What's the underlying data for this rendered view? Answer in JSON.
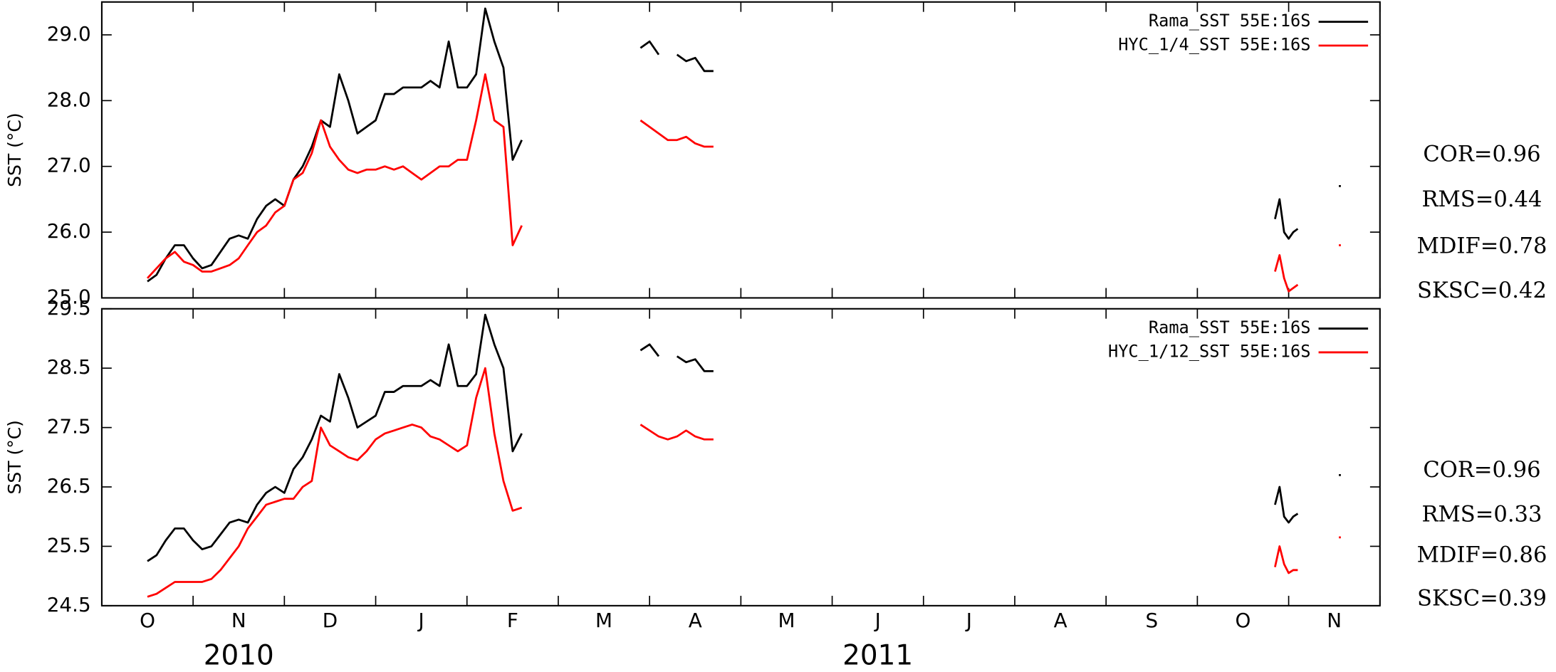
{
  "chart_data": [
    {
      "type": "line",
      "ylabel": "SST (°C)",
      "legend": "upper right",
      "xlim": [
        0,
        14
      ],
      "xticks": [
        0,
        1,
        2,
        3,
        4,
        5,
        6,
        7,
        8,
        9,
        10,
        11,
        12,
        13,
        14
      ],
      "ylim": [
        25,
        29.5
      ],
      "yticks": [
        {
          "value": 25,
          "label": "25.0"
        },
        {
          "value": 26,
          "label": "26.0"
        },
        {
          "value": 27,
          "label": "27.0"
        },
        {
          "value": 28,
          "label": "28.0"
        },
        {
          "value": 29,
          "label": "29.0"
        }
      ],
      "x": [
        0.5,
        0.6,
        0.7,
        0.8,
        0.9,
        1.0,
        1.1,
        1.2,
        1.3,
        1.4,
        1.5,
        1.6,
        1.7,
        1.8,
        1.9,
        2.0,
        2.1,
        2.2,
        2.3,
        2.4,
        2.5,
        2.6,
        2.7,
        2.8,
        2.9,
        3.0,
        3.1,
        3.2,
        3.3,
        3.4,
        3.5,
        3.6,
        3.7,
        3.8,
        3.9,
        4.0,
        4.1,
        4.2,
        4.3,
        4.4,
        4.5,
        4.6,
        5.0,
        5.9,
        6.0,
        6.1,
        6.2,
        6.3,
        6.4,
        6.5,
        6.6,
        6.7,
        7.0,
        12.85,
        12.9,
        12.95,
        13.0,
        13.05,
        13.1,
        13.3,
        13.55
      ],
      "series": [
        {
          "name": "Rama_SST 55E:16S",
          "color": "#000000",
          "values": [
            25.25,
            25.35,
            25.6,
            25.8,
            25.8,
            25.6,
            25.45,
            25.5,
            25.7,
            25.9,
            25.95,
            25.9,
            26.2,
            26.4,
            26.5,
            26.4,
            26.8,
            27.0,
            27.3,
            27.7,
            27.6,
            28.4,
            28.0,
            27.5,
            27.6,
            27.7,
            28.1,
            28.1,
            28.2,
            28.2,
            28.2,
            28.3,
            28.2,
            28.9,
            28.2,
            28.2,
            28.4,
            29.4,
            28.9,
            28.5,
            27.1,
            27.4,
            null,
            28.8,
            28.9,
            28.7,
            null,
            28.7,
            28.6,
            28.65,
            28.45,
            28.45,
            null,
            26.2,
            26.5,
            26.0,
            25.9,
            26.0,
            26.05,
            null,
            26.7
          ]
        },
        {
          "name": "HYC_1/4_SST 55E:16S",
          "color": "#ff0000",
          "values": [
            25.3,
            25.45,
            25.6,
            25.7,
            25.55,
            25.5,
            25.4,
            25.4,
            25.45,
            25.5,
            25.6,
            25.8,
            26.0,
            26.1,
            26.3,
            26.4,
            26.8,
            26.9,
            27.2,
            27.7,
            27.3,
            27.1,
            26.95,
            26.9,
            26.95,
            26.95,
            27.0,
            26.95,
            27.0,
            26.9,
            26.8,
            26.9,
            27.0,
            27.0,
            27.1,
            27.1,
            27.7,
            28.4,
            27.7,
            27.6,
            25.8,
            26.1,
            null,
            27.7,
            27.6,
            27.5,
            27.4,
            27.4,
            27.45,
            27.35,
            27.3,
            27.3,
            null,
            25.4,
            25.65,
            25.3,
            25.1,
            25.15,
            25.2,
            null,
            25.8
          ]
        }
      ],
      "stats": [
        "COR=0.96",
        "RMS=0.44",
        "MDIF=0.78",
        "SKSC=0.42"
      ]
    },
    {
      "type": "line",
      "ylabel": "SST (°C)",
      "legend": "upper right",
      "xlim": [
        0,
        14
      ],
      "xticks": [
        0,
        1,
        2,
        3,
        4,
        5,
        6,
        7,
        8,
        9,
        10,
        11,
        12,
        13,
        14
      ],
      "categories": [
        "O",
        "N",
        "D",
        "J",
        "F",
        "M",
        "A",
        "M",
        "J",
        "J",
        "A",
        "S",
        "O",
        "N"
      ],
      "year_labels": [
        "2010",
        "2011"
      ],
      "ylim": [
        24.5,
        29.5
      ],
      "yticks": [
        24.5,
        25.5,
        26.5,
        27.5,
        28.5,
        29.5
      ],
      "x": [
        0.5,
        0.6,
        0.7,
        0.8,
        0.9,
        1.0,
        1.1,
        1.2,
        1.3,
        1.4,
        1.5,
        1.6,
        1.7,
        1.8,
        1.9,
        2.0,
        2.1,
        2.2,
        2.3,
        2.4,
        2.5,
        2.6,
        2.7,
        2.8,
        2.9,
        3.0,
        3.1,
        3.2,
        3.3,
        3.4,
        3.5,
        3.6,
        3.7,
        3.8,
        3.9,
        4.0,
        4.1,
        4.2,
        4.3,
        4.4,
        4.5,
        4.6,
        5.0,
        5.9,
        6.0,
        6.1,
        6.2,
        6.3,
        6.4,
        6.5,
        6.6,
        6.7,
        7.0,
        12.85,
        12.9,
        12.95,
        13.0,
        13.05,
        13.1,
        13.3,
        13.55
      ],
      "series": [
        {
          "name": "Rama_SST 55E:16S",
          "color": "#000000",
          "values": [
            25.25,
            25.35,
            25.6,
            25.8,
            25.8,
            25.6,
            25.45,
            25.5,
            25.7,
            25.9,
            25.95,
            25.9,
            26.2,
            26.4,
            26.5,
            26.4,
            26.8,
            27.0,
            27.3,
            27.7,
            27.6,
            28.4,
            28.0,
            27.5,
            27.6,
            27.7,
            28.1,
            28.1,
            28.2,
            28.2,
            28.2,
            28.3,
            28.2,
            28.9,
            28.2,
            28.2,
            28.4,
            29.4,
            28.9,
            28.5,
            27.1,
            27.4,
            null,
            28.8,
            28.9,
            28.7,
            null,
            28.7,
            28.6,
            28.65,
            28.45,
            28.45,
            null,
            26.2,
            26.5,
            26.0,
            25.9,
            26.0,
            26.05,
            null,
            26.7
          ]
        },
        {
          "name": "HYC_1/12_SST 55E:16S",
          "color": "#ff0000",
          "values": [
            24.65,
            24.7,
            24.8,
            24.9,
            24.9,
            24.9,
            24.9,
            24.95,
            25.1,
            25.3,
            25.5,
            25.8,
            26.0,
            26.2,
            26.25,
            26.3,
            26.3,
            26.5,
            26.6,
            27.5,
            27.2,
            27.1,
            27.0,
            26.95,
            27.1,
            27.3,
            27.4,
            27.45,
            27.5,
            27.55,
            27.5,
            27.35,
            27.3,
            27.2,
            27.1,
            27.2,
            28.0,
            28.5,
            27.4,
            26.6,
            26.1,
            26.15,
            null,
            27.55,
            27.45,
            27.35,
            27.3,
            27.35,
            27.45,
            27.35,
            27.3,
            27.3,
            null,
            25.15,
            25.5,
            25.2,
            25.05,
            25.1,
            25.1,
            null,
            25.65
          ]
        }
      ],
      "stats": [
        "COR=0.96",
        "RMS=0.33",
        "MDIF=0.86",
        "SKSC=0.39"
      ]
    }
  ]
}
